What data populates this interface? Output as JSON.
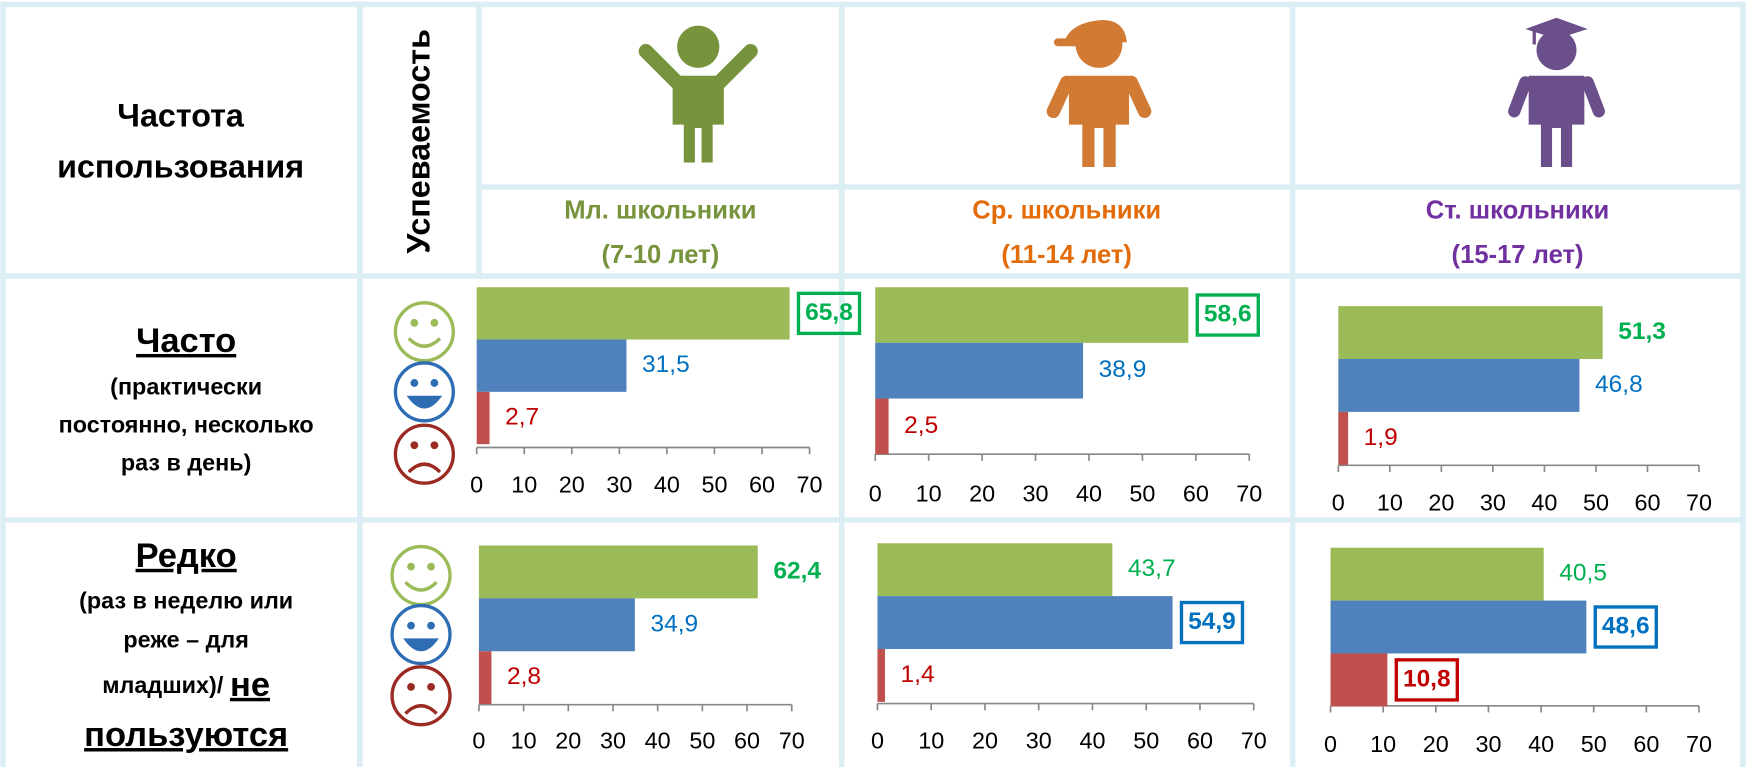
{
  "header": {
    "title_lines": [
      "Частота",
      "использования"
    ],
    "performance_label": "Успеваемость"
  },
  "groups": [
    {
      "name": "Мл. школьники",
      "age": "(7-10 лет)",
      "color": "#77933c"
    },
    {
      "name": "Ср. школьники",
      "age": "(11-14 лет)",
      "color": "#e36c09"
    },
    {
      "name": "Ст. школьники",
      "age": "(15-17 лет)",
      "color": "#7030a0"
    }
  ],
  "rows": [
    {
      "title": "Часто",
      "subtitle_lines": [
        "(практически",
        "постоянно, несколько",
        "раз в день)"
      ]
    },
    {
      "title": "Редко",
      "subtitle_lines": [
        "(раз в неделю или",
        "реже – для",
        "младших)/"
      ],
      "extra_lines": [
        "не",
        "пользуются"
      ]
    }
  ],
  "chart_data": [
    {
      "type": "bar",
      "orientation": "horizontal",
      "values": [
        65.8,
        31.5,
        2.7
      ],
      "value_labels": [
        "65,8",
        "31,5",
        "2,7"
      ],
      "colors": [
        "#9bbb59",
        "#4f81bd",
        "#c0504d"
      ],
      "label_colors": [
        "#00b050",
        "#0070c0",
        "#c00000"
      ],
      "bold": [
        true,
        false,
        false
      ],
      "boxed": [
        true,
        false,
        false
      ],
      "xlim": [
        0,
        70
      ],
      "xticks": [
        0,
        10,
        20,
        30,
        40,
        50,
        60,
        70
      ]
    },
    {
      "type": "bar",
      "orientation": "horizontal",
      "values": [
        58.6,
        38.9,
        2.5
      ],
      "value_labels": [
        "58,6",
        "38,9",
        "2,5"
      ],
      "colors": [
        "#9bbb59",
        "#4f81bd",
        "#c0504d"
      ],
      "label_colors": [
        "#00b050",
        "#0070c0",
        "#c00000"
      ],
      "bold": [
        true,
        false,
        false
      ],
      "boxed": [
        true,
        false,
        false
      ],
      "xlim": [
        0,
        70
      ],
      "xticks": [
        0,
        10,
        20,
        30,
        40,
        50,
        60,
        70
      ]
    },
    {
      "type": "bar",
      "orientation": "horizontal",
      "values": [
        51.3,
        46.8,
        1.9
      ],
      "value_labels": [
        "51,3",
        "46,8",
        "1,9"
      ],
      "colors": [
        "#9bbb59",
        "#4f81bd",
        "#c0504d"
      ],
      "label_colors": [
        "#00b050",
        "#0070c0",
        "#c00000"
      ],
      "bold": [
        true,
        false,
        false
      ],
      "boxed": [
        false,
        false,
        false
      ],
      "xlim": [
        0,
        70
      ],
      "xticks": [
        0,
        10,
        20,
        30,
        40,
        50,
        60,
        70
      ]
    },
    {
      "type": "bar",
      "orientation": "horizontal",
      "values": [
        62.4,
        34.9,
        2.8
      ],
      "value_labels": [
        "62,4",
        "34,9",
        "2,8"
      ],
      "colors": [
        "#9bbb59",
        "#4f81bd",
        "#c0504d"
      ],
      "label_colors": [
        "#00b050",
        "#0070c0",
        "#c00000"
      ],
      "bold": [
        true,
        false,
        false
      ],
      "boxed": [
        false,
        false,
        false
      ],
      "xlim": [
        0,
        70
      ],
      "xticks": [
        0,
        10,
        20,
        30,
        40,
        50,
        60,
        70
      ]
    },
    {
      "type": "bar",
      "orientation": "horizontal",
      "values": [
        43.7,
        54.9,
        1.4
      ],
      "value_labels": [
        "43,7",
        "54,9",
        "1,4"
      ],
      "colors": [
        "#9bbb59",
        "#4f81bd",
        "#c0504d"
      ],
      "label_colors": [
        "#00b050",
        "#0070c0",
        "#c00000"
      ],
      "bold": [
        false,
        true,
        false
      ],
      "boxed": [
        false,
        true,
        false
      ],
      "xlim": [
        0,
        70
      ],
      "xticks": [
        0,
        10,
        20,
        30,
        40,
        50,
        60,
        70
      ]
    },
    {
      "type": "bar",
      "orientation": "horizontal",
      "values": [
        40.5,
        48.6,
        10.8
      ],
      "value_labels": [
        "40,5",
        "48,6",
        "10,8"
      ],
      "colors": [
        "#9bbb59",
        "#4f81bd",
        "#c0504d"
      ],
      "label_colors": [
        "#00b050",
        "#0070c0",
        "#c00000"
      ],
      "bold": [
        false,
        true,
        true
      ],
      "boxed": [
        false,
        true,
        true
      ],
      "xlim": [
        0,
        70
      ],
      "xticks": [
        0,
        10,
        20,
        30,
        40,
        50,
        60,
        70
      ]
    }
  ]
}
